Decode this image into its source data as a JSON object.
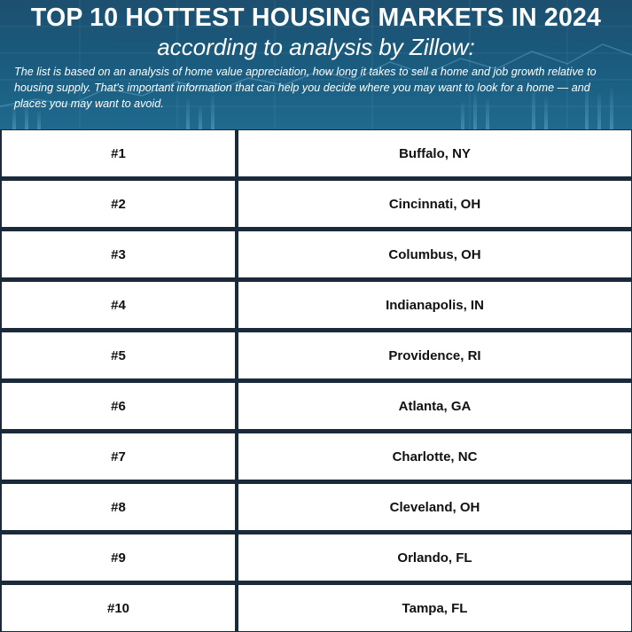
{
  "header": {
    "title": "TOP 10 HOTTEST HOUSING MARKETS IN 2024",
    "subtitle": "according to analysis by Zillow:",
    "description": "The list is based on an analysis of home value appreciation, how long it takes to sell a home and job growth relative to housing supply. That's important information that can help you decide where you may want to look for a home — and places you may want to avoid."
  },
  "rows": [
    {
      "rank": "#1",
      "city": "Buffalo, NY"
    },
    {
      "rank": "#2",
      "city": "Cincinnati, OH"
    },
    {
      "rank": "#3",
      "city": "Columbus, OH"
    },
    {
      "rank": "#4",
      "city": "Indianapolis, IN"
    },
    {
      "rank": "#5",
      "city": "Providence, RI"
    },
    {
      "rank": "#6",
      "city": "Atlanta, GA"
    },
    {
      "rank": "#7",
      "city": "Charlotte, NC"
    },
    {
      "rank": "#8",
      "city": "Cleveland, OH"
    },
    {
      "rank": "#9",
      "city": "Orlando, FL"
    },
    {
      "rank": "#10",
      "city": "Tampa, FL"
    }
  ],
  "colors": {
    "header_bg": "#1d5a7d",
    "row_border": "#1b2a3a",
    "cell_bg": "#ffffff",
    "text_dark": "#111111"
  }
}
